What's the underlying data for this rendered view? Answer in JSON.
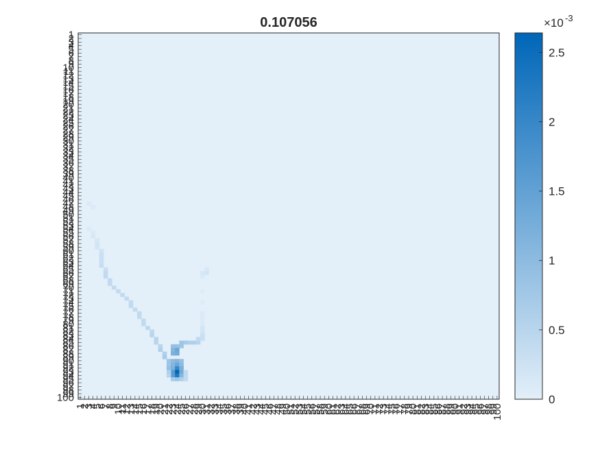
{
  "chart_data": {
    "type": "heatmap",
    "title": "0.107056",
    "xlabel": "",
    "ylabel": "",
    "x_range": [
      1,
      100
    ],
    "y_range": [
      1,
      100
    ],
    "y_direction": "top-to-bottom",
    "x_tick_labels": [
      "1",
      "2",
      "3",
      "4",
      "5",
      "6",
      "7",
      "8",
      "9",
      "10",
      "11",
      "12",
      "13",
      "14",
      "15",
      "16",
      "17",
      "18",
      "19",
      "20",
      "21",
      "22",
      "23",
      "24",
      "25",
      "26",
      "27",
      "28",
      "29",
      "30",
      "31",
      "32",
      "33",
      "34",
      "35",
      "36",
      "37",
      "38",
      "39",
      "40",
      "41",
      "42",
      "43",
      "44",
      "45",
      "46",
      "47",
      "48",
      "49",
      "50",
      "51",
      "52",
      "53",
      "54",
      "55",
      "56",
      "57",
      "58",
      "59",
      "60",
      "61",
      "62",
      "63",
      "64",
      "65",
      "66",
      "67",
      "68",
      "69",
      "70",
      "71",
      "72",
      "73",
      "74",
      "75",
      "76",
      "77",
      "78",
      "79",
      "80",
      "81",
      "82",
      "83",
      "84",
      "85",
      "86",
      "87",
      "88",
      "89",
      "90",
      "91",
      "92",
      "93",
      "94",
      "95",
      "96",
      "97",
      "98",
      "99",
      "100"
    ],
    "y_tick_labels": [
      "1",
      "2",
      "3",
      "4",
      "5",
      "6",
      "7",
      "8",
      "9",
      "10",
      "11",
      "12",
      "13",
      "14",
      "15",
      "16",
      "17",
      "18",
      "19",
      "20",
      "21",
      "22",
      "23",
      "24",
      "25",
      "26",
      "27",
      "28",
      "29",
      "30",
      "31",
      "32",
      "33",
      "34",
      "35",
      "36",
      "37",
      "38",
      "39",
      "40",
      "41",
      "42",
      "43",
      "44",
      "45",
      "46",
      "47",
      "48",
      "49",
      "50",
      "51",
      "52",
      "53",
      "54",
      "55",
      "56",
      "57",
      "58",
      "59",
      "60",
      "61",
      "62",
      "63",
      "64",
      "65",
      "66",
      "67",
      "68",
      "69",
      "70",
      "71",
      "72",
      "73",
      "74",
      "75",
      "76",
      "77",
      "78",
      "79",
      "80",
      "81",
      "82",
      "83",
      "84",
      "85",
      "86",
      "87",
      "88",
      "89",
      "90",
      "91",
      "92",
      "93",
      "94",
      "95",
      "96",
      "97",
      "98",
      "99",
      "100"
    ],
    "colorbar": {
      "min": 0,
      "max": 0.00264,
      "ticks": [
        0,
        0.0005,
        0.001,
        0.0015,
        0.002,
        0.0025
      ],
      "tick_labels": [
        "0",
        "0.5",
        "1",
        "1.5",
        "2",
        "2.5"
      ],
      "exponent_label": "×10",
      "exponent": "-3",
      "colormap": [
        "#e3eff9",
        "#0066b8"
      ]
    },
    "cells": [
      {
        "x": 3,
        "y": 47,
        "value": 0.0001
      },
      {
        "x": 4,
        "y": 48,
        "value": 0.0001
      },
      {
        "x": 3,
        "y": 54,
        "value": 0.0001
      },
      {
        "x": 4,
        "y": 55,
        "value": 0.0001
      },
      {
        "x": 4,
        "y": 56,
        "value": 0.00015
      },
      {
        "x": 5,
        "y": 57,
        "value": 0.00015
      },
      {
        "x": 5,
        "y": 58,
        "value": 0.0002
      },
      {
        "x": 5,
        "y": 59,
        "value": 0.0002
      },
      {
        "x": 6,
        "y": 60,
        "value": 0.00025
      },
      {
        "x": 6,
        "y": 61,
        "value": 0.0003
      },
      {
        "x": 6,
        "y": 62,
        "value": 0.0003
      },
      {
        "x": 6,
        "y": 63,
        "value": 0.0003
      },
      {
        "x": 6,
        "y": 64,
        "value": 0.00035
      },
      {
        "x": 7,
        "y": 65,
        "value": 0.0003
      },
      {
        "x": 7,
        "y": 66,
        "value": 0.0004
      },
      {
        "x": 7,
        "y": 67,
        "value": 0.0004
      },
      {
        "x": 8,
        "y": 68,
        "value": 0.0004
      },
      {
        "x": 8,
        "y": 69,
        "value": 0.0004
      },
      {
        "x": 9,
        "y": 70,
        "value": 0.0004
      },
      {
        "x": 10,
        "y": 71,
        "value": 0.0004
      },
      {
        "x": 11,
        "y": 72,
        "value": 0.0004
      },
      {
        "x": 12,
        "y": 73,
        "value": 0.0004
      },
      {
        "x": 13,
        "y": 74,
        "value": 0.0004
      },
      {
        "x": 13,
        "y": 75,
        "value": 0.0004
      },
      {
        "x": 14,
        "y": 76,
        "value": 0.0004
      },
      {
        "x": 15,
        "y": 77,
        "value": 0.0004
      },
      {
        "x": 15,
        "y": 78,
        "value": 0.0004
      },
      {
        "x": 16,
        "y": 79,
        "value": 0.0004
      },
      {
        "x": 16,
        "y": 80,
        "value": 0.0004
      },
      {
        "x": 17,
        "y": 81,
        "value": 0.00045
      },
      {
        "x": 18,
        "y": 82,
        "value": 0.00045
      },
      {
        "x": 18,
        "y": 83,
        "value": 0.0005
      },
      {
        "x": 19,
        "y": 84,
        "value": 0.0005
      },
      {
        "x": 19,
        "y": 85,
        "value": 0.0005
      },
      {
        "x": 20,
        "y": 86,
        "value": 0.0005
      },
      {
        "x": 20,
        "y": 87,
        "value": 0.0006
      },
      {
        "x": 21,
        "y": 88,
        "value": 0.0006
      },
      {
        "x": 21,
        "y": 89,
        "value": 0.0007
      },
      {
        "x": 22,
        "y": 90,
        "value": 0.0008
      },
      {
        "x": 22,
        "y": 91,
        "value": 0.0008
      },
      {
        "x": 22,
        "y": 92,
        "value": 0.0009
      },
      {
        "x": 23,
        "y": 86,
        "value": 0.0009
      },
      {
        "x": 23,
        "y": 87,
        "value": 0.0011
      },
      {
        "x": 23,
        "y": 88,
        "value": 0.0012
      },
      {
        "x": 24,
        "y": 86,
        "value": 0.0009
      },
      {
        "x": 24,
        "y": 87,
        "value": 0.0014
      },
      {
        "x": 24,
        "y": 88,
        "value": 0.0013
      },
      {
        "x": 25,
        "y": 85,
        "value": 0.0008
      },
      {
        "x": 25,
        "y": 86,
        "value": 0.0008
      },
      {
        "x": 26,
        "y": 85,
        "value": 0.0007
      },
      {
        "x": 27,
        "y": 85,
        "value": 0.0006
      },
      {
        "x": 28,
        "y": 85,
        "value": 0.0006
      },
      {
        "x": 29,
        "y": 85,
        "value": 0.0005
      },
      {
        "x": 29,
        "y": 84,
        "value": 0.0004
      },
      {
        "x": 30,
        "y": 84,
        "value": 0.0003
      },
      {
        "x": 30,
        "y": 83,
        "value": 0.0003
      },
      {
        "x": 30,
        "y": 82,
        "value": 0.0002
      },
      {
        "x": 30,
        "y": 81,
        "value": 0.0002
      },
      {
        "x": 30,
        "y": 80,
        "value": 0.0001
      },
      {
        "x": 30,
        "y": 79,
        "value": 0.0001
      },
      {
        "x": 30,
        "y": 78,
        "value": 0.0001
      },
      {
        "x": 30,
        "y": 77,
        "value": 0.0001
      },
      {
        "x": 30,
        "y": 74,
        "value": 5e-05
      },
      {
        "x": 30,
        "y": 71,
        "value": 5e-05
      },
      {
        "x": 30,
        "y": 67,
        "value": 0.0001
      },
      {
        "x": 30,
        "y": 66,
        "value": 0.00015
      },
      {
        "x": 31,
        "y": 66,
        "value": 0.0002
      },
      {
        "x": 31,
        "y": 65,
        "value": 0.00015
      },
      {
        "x": 23,
        "y": 90,
        "value": 0.001
      },
      {
        "x": 24,
        "y": 90,
        "value": 0.0011
      },
      {
        "x": 25,
        "y": 90,
        "value": 0.0009
      },
      {
        "x": 23,
        "y": 91,
        "value": 0.0011
      },
      {
        "x": 23,
        "y": 92,
        "value": 0.0012
      },
      {
        "x": 23,
        "y": 93,
        "value": 0.0016
      },
      {
        "x": 23,
        "y": 94,
        "value": 0.0016
      },
      {
        "x": 24,
        "y": 91,
        "value": 0.0014
      },
      {
        "x": 24,
        "y": 92,
        "value": 0.002
      },
      {
        "x": 24,
        "y": 93,
        "value": 0.00264
      },
      {
        "x": 24,
        "y": 94,
        "value": 0.0023
      },
      {
        "x": 25,
        "y": 91,
        "value": 0.001
      },
      {
        "x": 25,
        "y": 92,
        "value": 0.0012
      },
      {
        "x": 25,
        "y": 93,
        "value": 0.0013
      },
      {
        "x": 25,
        "y": 94,
        "value": 0.0011
      },
      {
        "x": 22,
        "y": 93,
        "value": 0.0006
      },
      {
        "x": 22,
        "y": 94,
        "value": 0.0005
      },
      {
        "x": 23,
        "y": 95,
        "value": 0.0007
      },
      {
        "x": 24,
        "y": 95,
        "value": 0.0008
      },
      {
        "x": 25,
        "y": 95,
        "value": 0.0006
      },
      {
        "x": 26,
        "y": 93,
        "value": 0.0004
      },
      {
        "x": 26,
        "y": 94,
        "value": 0.0004
      },
      {
        "x": 26,
        "y": 95,
        "value": 0.0004
      }
    ]
  }
}
